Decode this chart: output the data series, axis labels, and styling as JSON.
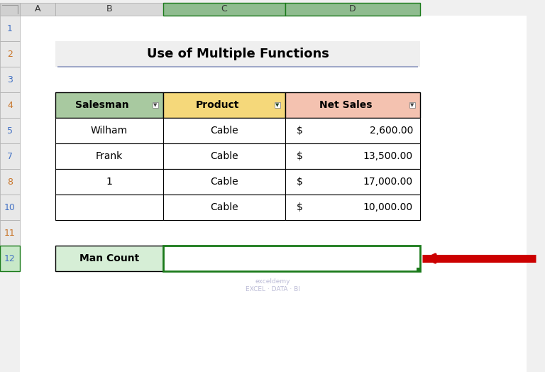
{
  "title": "Use of Multiple Functions",
  "bg_color": "#F0F0F0",
  "row_numbers": [
    "1",
    "2",
    "3",
    "4",
    "5",
    "7",
    "8",
    "10",
    "11",
    "12"
  ],
  "col_letters_display": [
    "A",
    "B",
    "C",
    "D"
  ],
  "header_row": [
    "Salesman",
    "Product",
    "Net Sales"
  ],
  "header_bg": [
    "#A8C9A0",
    "#F5D87A",
    "#F4C2B0"
  ],
  "data_rows": [
    [
      "Wilham",
      "Cable",
      "$",
      "2,600.00"
    ],
    [
      "Frank",
      "Cable",
      "$",
      "13,500.00"
    ],
    [
      "1",
      "Cable",
      "$",
      "17,000.00"
    ],
    [
      "",
      "Cable",
      "$",
      "10,000.00"
    ]
  ],
  "man_count_label": "Man Count",
  "man_count_bg": "#D6EED6",
  "arrow_color": "#CC0000",
  "grid_line_color": "#000000",
  "col_header_bg_normal": "#D8D8D8",
  "col_header_bg_selected": "#8FBC8F",
  "row_header_bg": "#E8E8E8",
  "row_header_bg_selected": "#C8E8C8",
  "row_num_color_blue": "#4472C4",
  "row_num_color_orange": "#C8752A",
  "title_fontsize": 13,
  "cell_fontsize": 10,
  "header_fontsize": 10,
  "row_num_fontsize": 9,
  "col_letter_fontsize": 9,
  "watermark_text": "exceldemy\nEXCEL · DATA · BI",
  "underline_color": "#A0A8C8"
}
